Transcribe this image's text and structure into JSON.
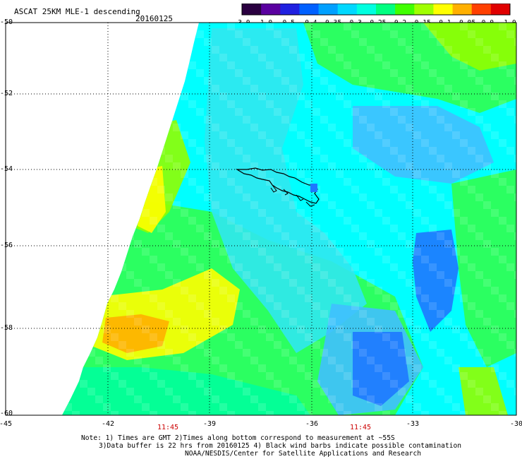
{
  "header": {
    "title": "ASCAT 25KM MLE-1 descending",
    "date": "20160125"
  },
  "colorbar": {
    "tick_labels": [
      "-3.0",
      "-1.0",
      "-0.5",
      "-0.4",
      "-0.35",
      "-0.3",
      "-0.25",
      "-0.2",
      "-0.15",
      "-0.1",
      "-0.05",
      "0.0",
      "1.0"
    ],
    "colors": [
      "#2a0040",
      "#5a00a0",
      "#2020e0",
      "#0060ff",
      "#00a0ff",
      "#00d8ff",
      "#00ffe0",
      "#00ff80",
      "#40ff00",
      "#a0ff00",
      "#ffff00",
      "#ffb000",
      "#ff4000",
      "#e00000"
    ]
  },
  "axes": {
    "lat_labels": [
      "-50",
      "-52",
      "-54",
      "-56",
      "-58",
      "-60"
    ],
    "lon_labels": [
      "-45",
      "-42",
      "-39",
      "-36",
      "-33",
      "-30"
    ],
    "time_labels": [
      "11:45",
      "11:45"
    ]
  },
  "notes": {
    "line1": "Note: 1) Times are GMT 2)Times along bottom correspond to measurement at ~55S",
    "line2": "3)Data buffer is 22 hrs from 20160125 4) Black wind barbs indicate possible contamination",
    "line3": "NOAA/NESDIS/Center for Satellite Applications and Research"
  },
  "palette": {
    "cyan": "#00ffff",
    "aqua": "#30e8f0",
    "light_blue": "#40c0ff",
    "blue": "#1e78ff",
    "green_cyan": "#00ff9c",
    "green": "#30ff50",
    "lime": "#90ff00",
    "yellow": "#ffff00",
    "orange": "#ffb000",
    "coast": "#000000"
  }
}
